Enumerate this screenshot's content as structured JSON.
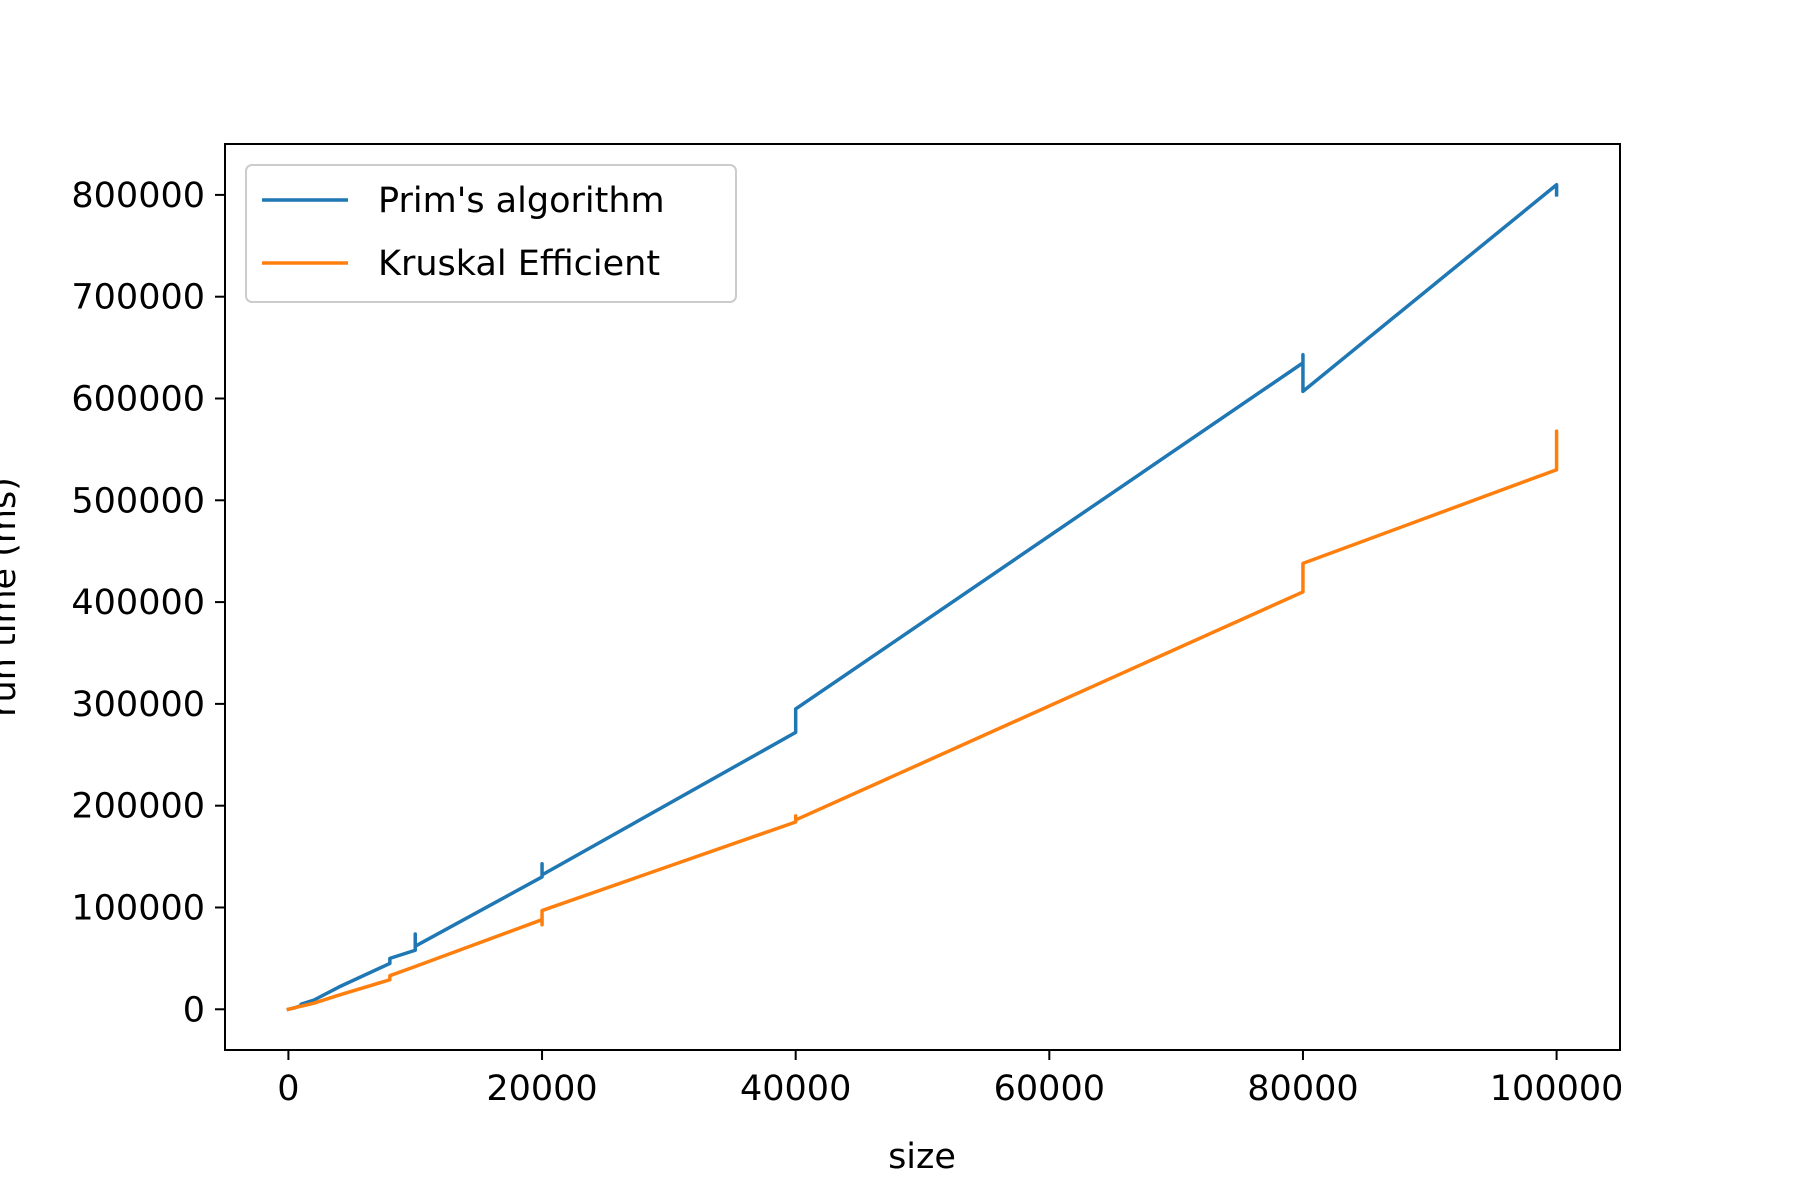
{
  "chart_data": {
    "type": "line",
    "title": "",
    "xlabel": "size",
    "ylabel": "run time (ms)",
    "xlim": [
      -5000,
      105000
    ],
    "ylim": [
      -40000,
      850000
    ],
    "xticks": [
      0,
      20000,
      40000,
      60000,
      80000,
      100000
    ],
    "yticks": [
      0,
      100000,
      200000,
      300000,
      400000,
      500000,
      600000,
      700000,
      800000
    ],
    "grid": false,
    "legend": {
      "position": "top-left",
      "entries": [
        "Prim's algorithm",
        "Kruskal Efficient"
      ]
    },
    "series": [
      {
        "name": "Prim's algorithm",
        "color": "#1f77b4",
        "points": [
          [
            0,
            0
          ],
          [
            500,
            1500
          ],
          [
            1000,
            3500
          ],
          [
            1000,
            5000
          ],
          [
            2000,
            9000
          ],
          [
            4000,
            22000
          ],
          [
            8000,
            45000
          ],
          [
            8000,
            50000
          ],
          [
            10000,
            58000
          ],
          [
            10000,
            74000
          ],
          [
            10000,
            62000
          ],
          [
            20000,
            130000
          ],
          [
            20000,
            143000
          ],
          [
            20000,
            132000
          ],
          [
            40000,
            272000
          ],
          [
            40000,
            295000
          ],
          [
            80000,
            635000
          ],
          [
            80000,
            643000
          ],
          [
            80000,
            607000
          ],
          [
            100000,
            810000
          ],
          [
            100000,
            800000
          ]
        ]
      },
      {
        "name": "Kruskal Efficient",
        "color": "#ff7f0e",
        "points": [
          [
            0,
            0
          ],
          [
            1000,
            3000
          ],
          [
            2000,
            6000
          ],
          [
            4000,
            14000
          ],
          [
            8000,
            29000
          ],
          [
            8000,
            33000
          ],
          [
            10000,
            42000
          ],
          [
            20000,
            88000
          ],
          [
            20000,
            83000
          ],
          [
            20000,
            97000
          ],
          [
            40000,
            184000
          ],
          [
            40000,
            190000
          ],
          [
            40000,
            186000
          ],
          [
            80000,
            410000
          ],
          [
            80000,
            438000
          ],
          [
            100000,
            530000
          ],
          [
            100000,
            540000
          ],
          [
            100000,
            568000
          ],
          [
            100000,
            560000
          ]
        ]
      }
    ]
  }
}
